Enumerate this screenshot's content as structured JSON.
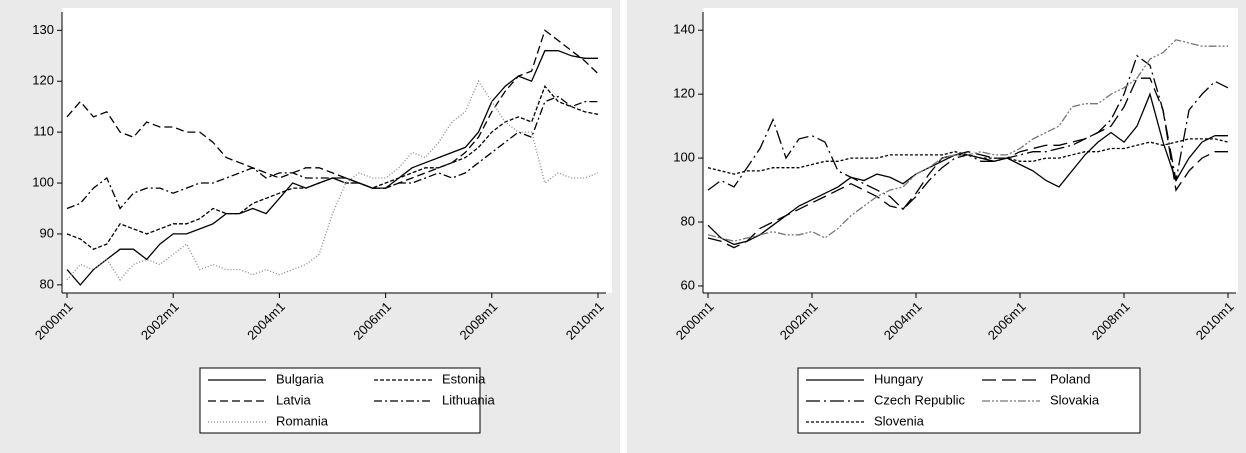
{
  "chart_data": [
    {
      "type": "line",
      "categories": [
        "2000m1",
        null,
        null,
        null,
        null,
        null,
        null,
        null,
        "2002m1",
        null,
        null,
        null,
        null,
        null,
        null,
        null,
        "2004m1",
        null,
        null,
        null,
        null,
        null,
        null,
        null,
        "2006m1",
        null,
        null,
        null,
        null,
        null,
        null,
        null,
        "2008m1",
        null,
        null,
        null,
        null,
        null,
        null,
        null,
        "2010m1"
      ],
      "ylim": [
        78.4,
        133.6
      ],
      "yticks": [
        80,
        90,
        100,
        110,
        120,
        130
      ],
      "series": [
        {
          "name": "Bulgaria",
          "color": "#000000",
          "dash": "none",
          "values": [
            83,
            80,
            83,
            85,
            87,
            87,
            85,
            88,
            90,
            90,
            91,
            92,
            94,
            94,
            95,
            94,
            97,
            100,
            99,
            100,
            101,
            101,
            100,
            99,
            99,
            101,
            103,
            104,
            105,
            106,
            107,
            110,
            116,
            119,
            121,
            120,
            126,
            126,
            125,
            124.5,
            124.5
          ]
        },
        {
          "name": "Estonia",
          "color": "#000000",
          "dash": "4,2",
          "values": [
            90,
            89,
            87,
            88,
            92,
            91,
            90,
            91,
            92,
            92,
            93,
            95,
            94,
            94,
            96,
            97,
            98,
            99,
            99,
            100,
            101,
            100,
            100,
            99,
            100,
            101,
            102,
            103,
            103,
            104,
            105,
            107,
            110,
            112,
            113,
            112,
            119,
            116,
            115,
            114,
            113.5
          ]
        },
        {
          "name": "Latvia",
          "color": "#000000",
          "dash": "8,4",
          "values": [
            113,
            116,
            113,
            114,
            110,
            109,
            112,
            111,
            111,
            110,
            110,
            108,
            105,
            104,
            103,
            102,
            101,
            102,
            103,
            103,
            102,
            101,
            100,
            99,
            99,
            100,
            101,
            102,
            103,
            104,
            106,
            109,
            114,
            118,
            121,
            122,
            130,
            128,
            126,
            124,
            121.5
          ]
        },
        {
          "name": "Lithuania",
          "color": "#000000",
          "dash": "8,3,2,3",
          "values": [
            95,
            96,
            99,
            101,
            95,
            98,
            99,
            99,
            98,
            99,
            100,
            100,
            101,
            102,
            103,
            101,
            102,
            102,
            101,
            101,
            101,
            100,
            100,
            99,
            99,
            100,
            100,
            101,
            102,
            101,
            102,
            104,
            106,
            108,
            110,
            109,
            116,
            117,
            115,
            116,
            116
          ]
        },
        {
          "name": "Romania",
          "color": "#888888",
          "dash": "1,2",
          "values": [
            81,
            84,
            83,
            85,
            81,
            84,
            85,
            84,
            86,
            88,
            83,
            84,
            83,
            83,
            82,
            83,
            82,
            83,
            84,
            86,
            94,
            100,
            102,
            101,
            101,
            103,
            106,
            105,
            108,
            112,
            114,
            120,
            116,
            112,
            110,
            110,
            100,
            102,
            101,
            101,
            102
          ]
        }
      ]
    },
    {
      "type": "line",
      "categories": [
        "2000m1",
        null,
        null,
        null,
        null,
        null,
        null,
        null,
        "2002m1",
        null,
        null,
        null,
        null,
        null,
        null,
        null,
        "2004m1",
        null,
        null,
        null,
        null,
        null,
        null,
        null,
        "2006m1",
        null,
        null,
        null,
        null,
        null,
        null,
        null,
        "2008m1",
        null,
        null,
        null,
        null,
        null,
        null,
        null,
        "2010m1"
      ],
      "ylim": [
        57.8,
        145.7
      ],
      "yticks": [
        60,
        80,
        100,
        120,
        140
      ],
      "series": [
        {
          "name": "Hungary",
          "color": "#000000",
          "dash": "none",
          "values": [
            79,
            75,
            73,
            74,
            76,
            79,
            82,
            85,
            87,
            89,
            91,
            94,
            93,
            95,
            94,
            92,
            95,
            97,
            99,
            101,
            101,
            100,
            99,
            100,
            98,
            96,
            93,
            91,
            96,
            101,
            105,
            108,
            105,
            110,
            120,
            105,
            93,
            100,
            105,
            107,
            107
          ]
        },
        {
          "name": "Poland",
          "color": "#000000",
          "dash": "14,6",
          "values": [
            75,
            74,
            72,
            74,
            78,
            80,
            82,
            84,
            86,
            88,
            90,
            92,
            90,
            88,
            85,
            84,
            89,
            95,
            100,
            101,
            102,
            101,
            100,
            100,
            102,
            103,
            104,
            104,
            105,
            106,
            108,
            110,
            116,
            125,
            125,
            115,
            90,
            96,
            100,
            102,
            102
          ]
        },
        {
          "name": "Czech Republic",
          "color": "#000000",
          "dash": "14,4,2,4",
          "values": [
            90,
            93,
            91,
            97,
            103,
            112,
            100,
            106,
            107,
            105,
            96,
            94,
            92,
            90,
            88,
            84,
            88,
            93,
            97,
            100,
            101,
            99,
            99,
            100,
            101,
            102,
            102,
            103,
            104,
            106,
            108,
            112,
            120,
            132,
            129,
            115,
            93,
            115,
            120,
            124,
            122
          ]
        },
        {
          "name": "Slovakia",
          "color": "#777777",
          "dash": "8,2,2,2,2,2",
          "values": [
            76,
            75,
            74,
            75,
            76,
            77,
            76,
            76,
            77,
            75,
            78,
            82,
            85,
            88,
            90,
            91,
            95,
            97,
            100,
            101,
            101,
            102,
            101,
            101,
            103,
            106,
            108,
            110,
            116,
            117,
            117,
            120,
            122,
            125,
            131,
            133,
            137,
            136,
            135,
            135,
            135
          ]
        },
        {
          "name": "Slovenia",
          "color": "#000000",
          "dash": "3,2",
          "values": [
            97,
            96,
            95,
            96,
            96,
            97,
            97,
            97,
            98,
            99,
            99,
            100,
            100,
            100,
            101,
            101,
            101,
            101,
            101,
            102,
            101,
            100,
            100,
            100,
            99,
            99,
            100,
            100,
            101,
            102,
            102,
            103,
            103,
            104,
            105,
            104,
            105,
            106,
            106,
            106,
            105
          ]
        }
      ]
    }
  ]
}
